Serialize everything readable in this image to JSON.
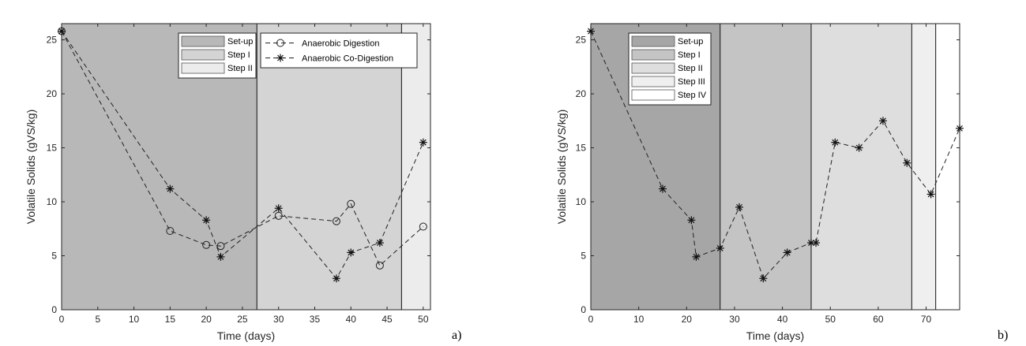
{
  "chart_data": [
    {
      "type": "line",
      "panel_label": "a)",
      "xlabel": "Time (days)",
      "ylabel": "Volatile Solids (gVS/kg)",
      "xlim": [
        0,
        51
      ],
      "ylim": [
        0,
        26.5
      ],
      "xticks": [
        0,
        5,
        10,
        15,
        20,
        25,
        30,
        35,
        40,
        45,
        50
      ],
      "yticks": [
        0,
        5,
        10,
        15,
        20,
        25
      ],
      "phases": [
        {
          "name": "Set-up",
          "start": 0,
          "end": 27,
          "color": "#b8b8b8"
        },
        {
          "name": "Step I",
          "start": 27,
          "end": 47,
          "color": "#d4d4d4"
        },
        {
          "name": "Step II",
          "start": 47,
          "end": 51,
          "color": "#ececec"
        }
      ],
      "series": [
        {
          "name": "Anaerobic Digestion",
          "marker": "circle",
          "x": [
            0,
            15,
            20,
            22,
            30,
            38,
            40,
            44,
            50
          ],
          "values": [
            25.8,
            7.3,
            6.0,
            5.9,
            8.7,
            8.2,
            9.8,
            4.1,
            7.7
          ]
        },
        {
          "name": "Anaerobic Co-Digestion",
          "marker": "asterisk",
          "x": [
            0,
            15,
            20,
            22,
            30,
            38,
            40,
            44,
            50
          ],
          "values": [
            25.8,
            11.2,
            8.3,
            4.9,
            9.4,
            2.9,
            5.3,
            6.2,
            15.5
          ]
        }
      ]
    },
    {
      "type": "line",
      "panel_label": "b)",
      "xlabel": "Time (days)",
      "ylabel": "Volatile Solids (gVS/kg)",
      "xlim": [
        0,
        77
      ],
      "ylim": [
        0,
        26.5
      ],
      "xticks": [
        0,
        10,
        20,
        30,
        40,
        50,
        60,
        70
      ],
      "yticks": [
        0,
        5,
        10,
        15,
        20,
        25
      ],
      "phases": [
        {
          "name": "Set-up",
          "start": 0,
          "end": 27,
          "color": "#a6a6a6"
        },
        {
          "name": "Step I",
          "start": 27,
          "end": 46,
          "color": "#c4c4c4"
        },
        {
          "name": "Step II",
          "start": 46,
          "end": 67,
          "color": "#dedede"
        },
        {
          "name": "Step III",
          "start": 67,
          "end": 72,
          "color": "#efefef"
        },
        {
          "name": "Step IV",
          "start": 72,
          "end": 77,
          "color": "#ffffff"
        }
      ],
      "series": [
        {
          "name": "Anaerobic Co-Digestion",
          "marker": "asterisk",
          "x": [
            0,
            15,
            21,
            22,
            27,
            31,
            36,
            41,
            46,
            47,
            51,
            56,
            61,
            66,
            71,
            77
          ],
          "values": [
            25.8,
            11.2,
            8.3,
            4.9,
            5.7,
            9.5,
            2.9,
            5.3,
            6.2,
            6.2,
            15.5,
            15.0,
            17.5,
            13.6,
            10.7,
            16.8
          ]
        }
      ]
    }
  ]
}
